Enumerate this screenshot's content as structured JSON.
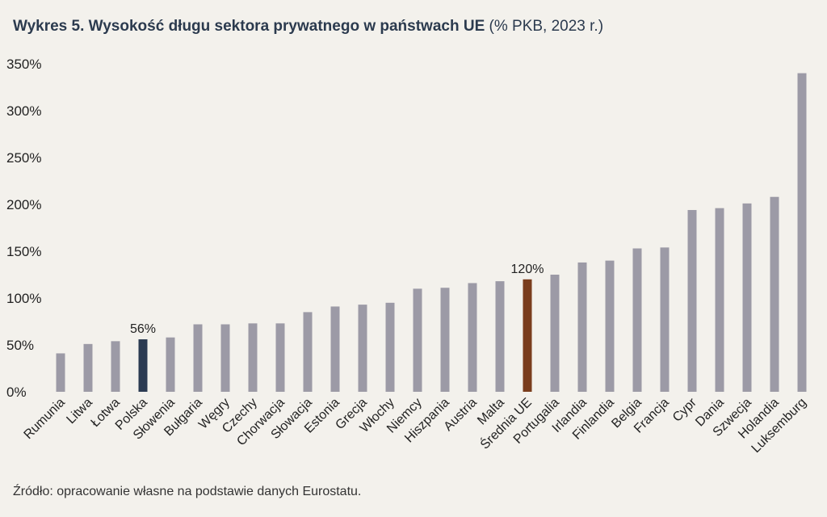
{
  "title": {
    "main": "Wykres 5. Wysokość długu sektora prywatnego w państwach UE",
    "sub": "(% PKB, 2023 r.)"
  },
  "source": "Źródło: opracowanie własne na podstawie danych Eurostatu.",
  "chart_data": {
    "type": "bar",
    "title": "Wykres 5. Wysokość długu sektora prywatnego w państwach UE (% PKB, 2023 r.)",
    "xlabel": "",
    "ylabel": "",
    "ylim": [
      0,
      350
    ],
    "yticks": [
      "0%",
      "50%",
      "100%",
      "150%",
      "200%",
      "250%",
      "300%",
      "350%"
    ],
    "grid": false,
    "categories": [
      "Rumunia",
      "Litwa",
      "Łotwa",
      "Polska",
      "Słowenia",
      "Bułgaria",
      "Węgry",
      "Czechy",
      "Chorwacja",
      "Słowacja",
      "Estonia",
      "Grecja",
      "Włochy",
      "Niemcy",
      "Hiszpania",
      "Austria",
      "Malta",
      "Średnia UE",
      "Portugalia",
      "Irlandia",
      "Finlandia",
      "Belgia",
      "Francja",
      "Cypr",
      "Dania",
      "Szwecja",
      "Holandia",
      "Luksemburg"
    ],
    "values": [
      41,
      51,
      54,
      56,
      58,
      72,
      72,
      73,
      73,
      85,
      91,
      93,
      95,
      110,
      111,
      116,
      118,
      120,
      125,
      138,
      140,
      153,
      154,
      194,
      196,
      201,
      208,
      340
    ],
    "colors": {
      "default": "#9c9aa6",
      "Polska": "#2b3b52",
      "Średnia UE": "#7a3d1d"
    },
    "data_labels": [
      {
        "category": "Polska",
        "text": "56%"
      },
      {
        "category": "Średnia UE",
        "text": "120%"
      }
    ]
  }
}
